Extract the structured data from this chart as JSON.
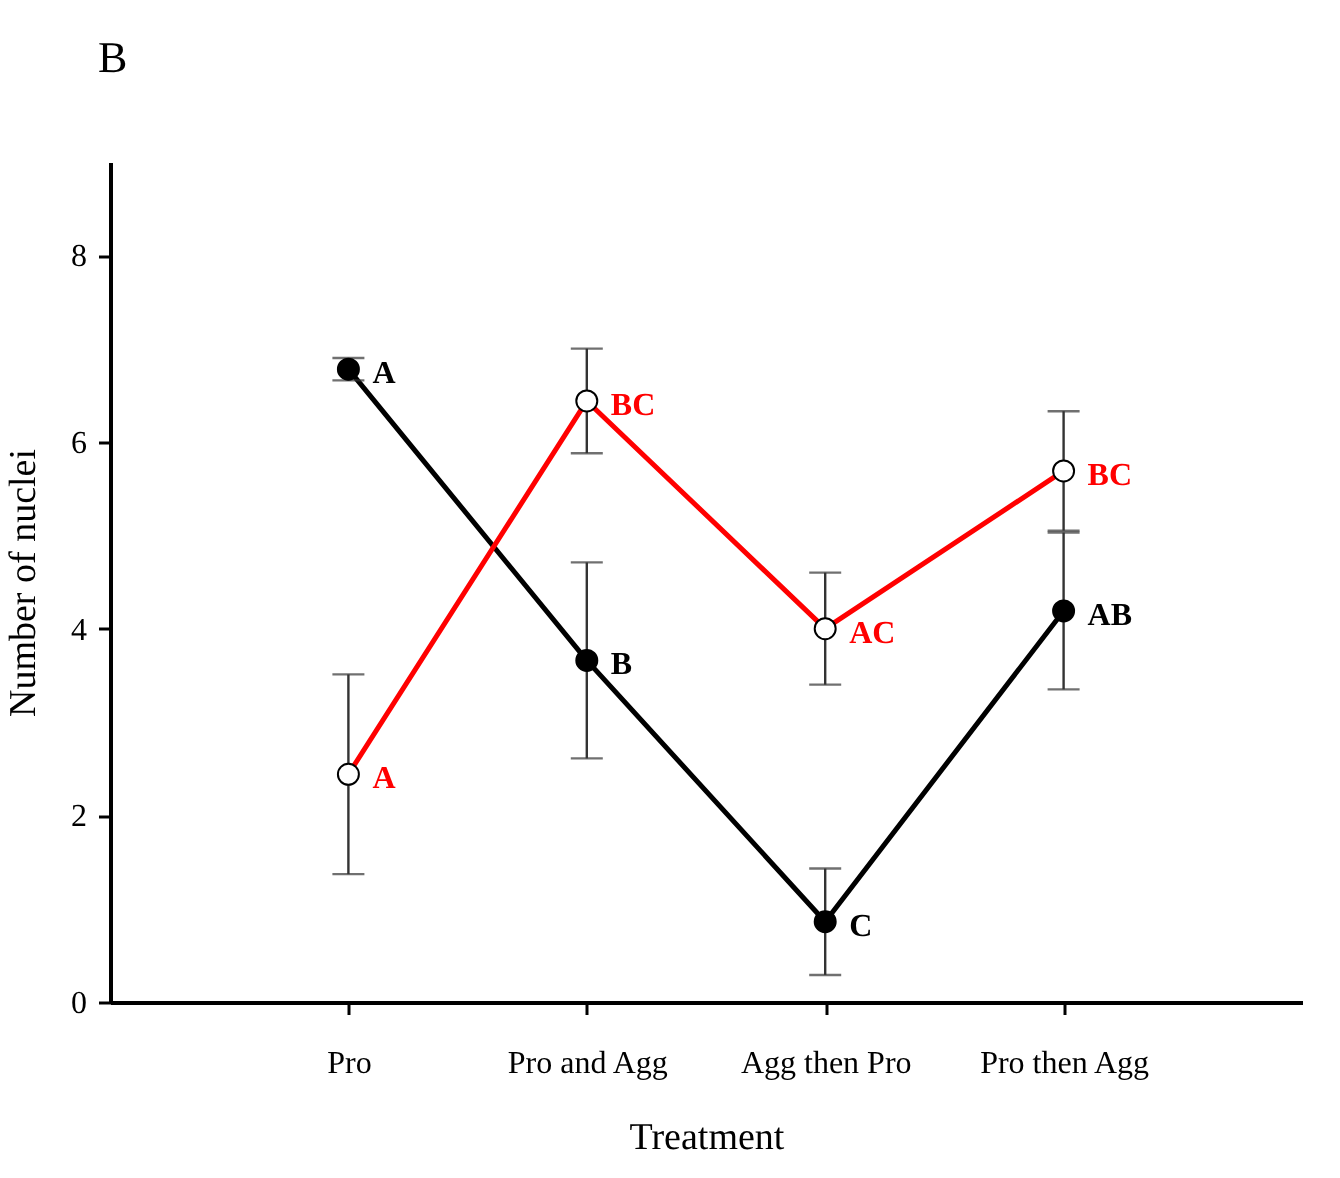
{
  "chart_data": {
    "type": "line",
    "title": "B",
    "xlabel": "Treatment",
    "ylabel": "Number of nuclei",
    "categories": [
      "Pro",
      "Pro and Agg",
      "Agg then Pro",
      "Pro then Agg"
    ],
    "series": [
      {
        "color": "#000000",
        "values": [
          6.78,
          3.66,
          0.86,
          4.19
        ],
        "errors": [
          0.12,
          1.05,
          0.57,
          0.84
        ],
        "value_labels": [
          "A",
          "B",
          "C",
          "AB"
        ]
      },
      {
        "color": "#ff0000",
        "values": [
          2.44,
          6.44,
          4.0,
          5.69
        ],
        "errors": [
          1.07,
          0.56,
          0.6,
          0.64
        ],
        "value_labels": [
          "A",
          "BC",
          "AC",
          "BC"
        ]
      }
    ],
    "ylim": [
      0,
      9
    ],
    "yticks": [
      0,
      2,
      4,
      6,
      8
    ],
    "marker": "circle",
    "line_style": "solid"
  }
}
